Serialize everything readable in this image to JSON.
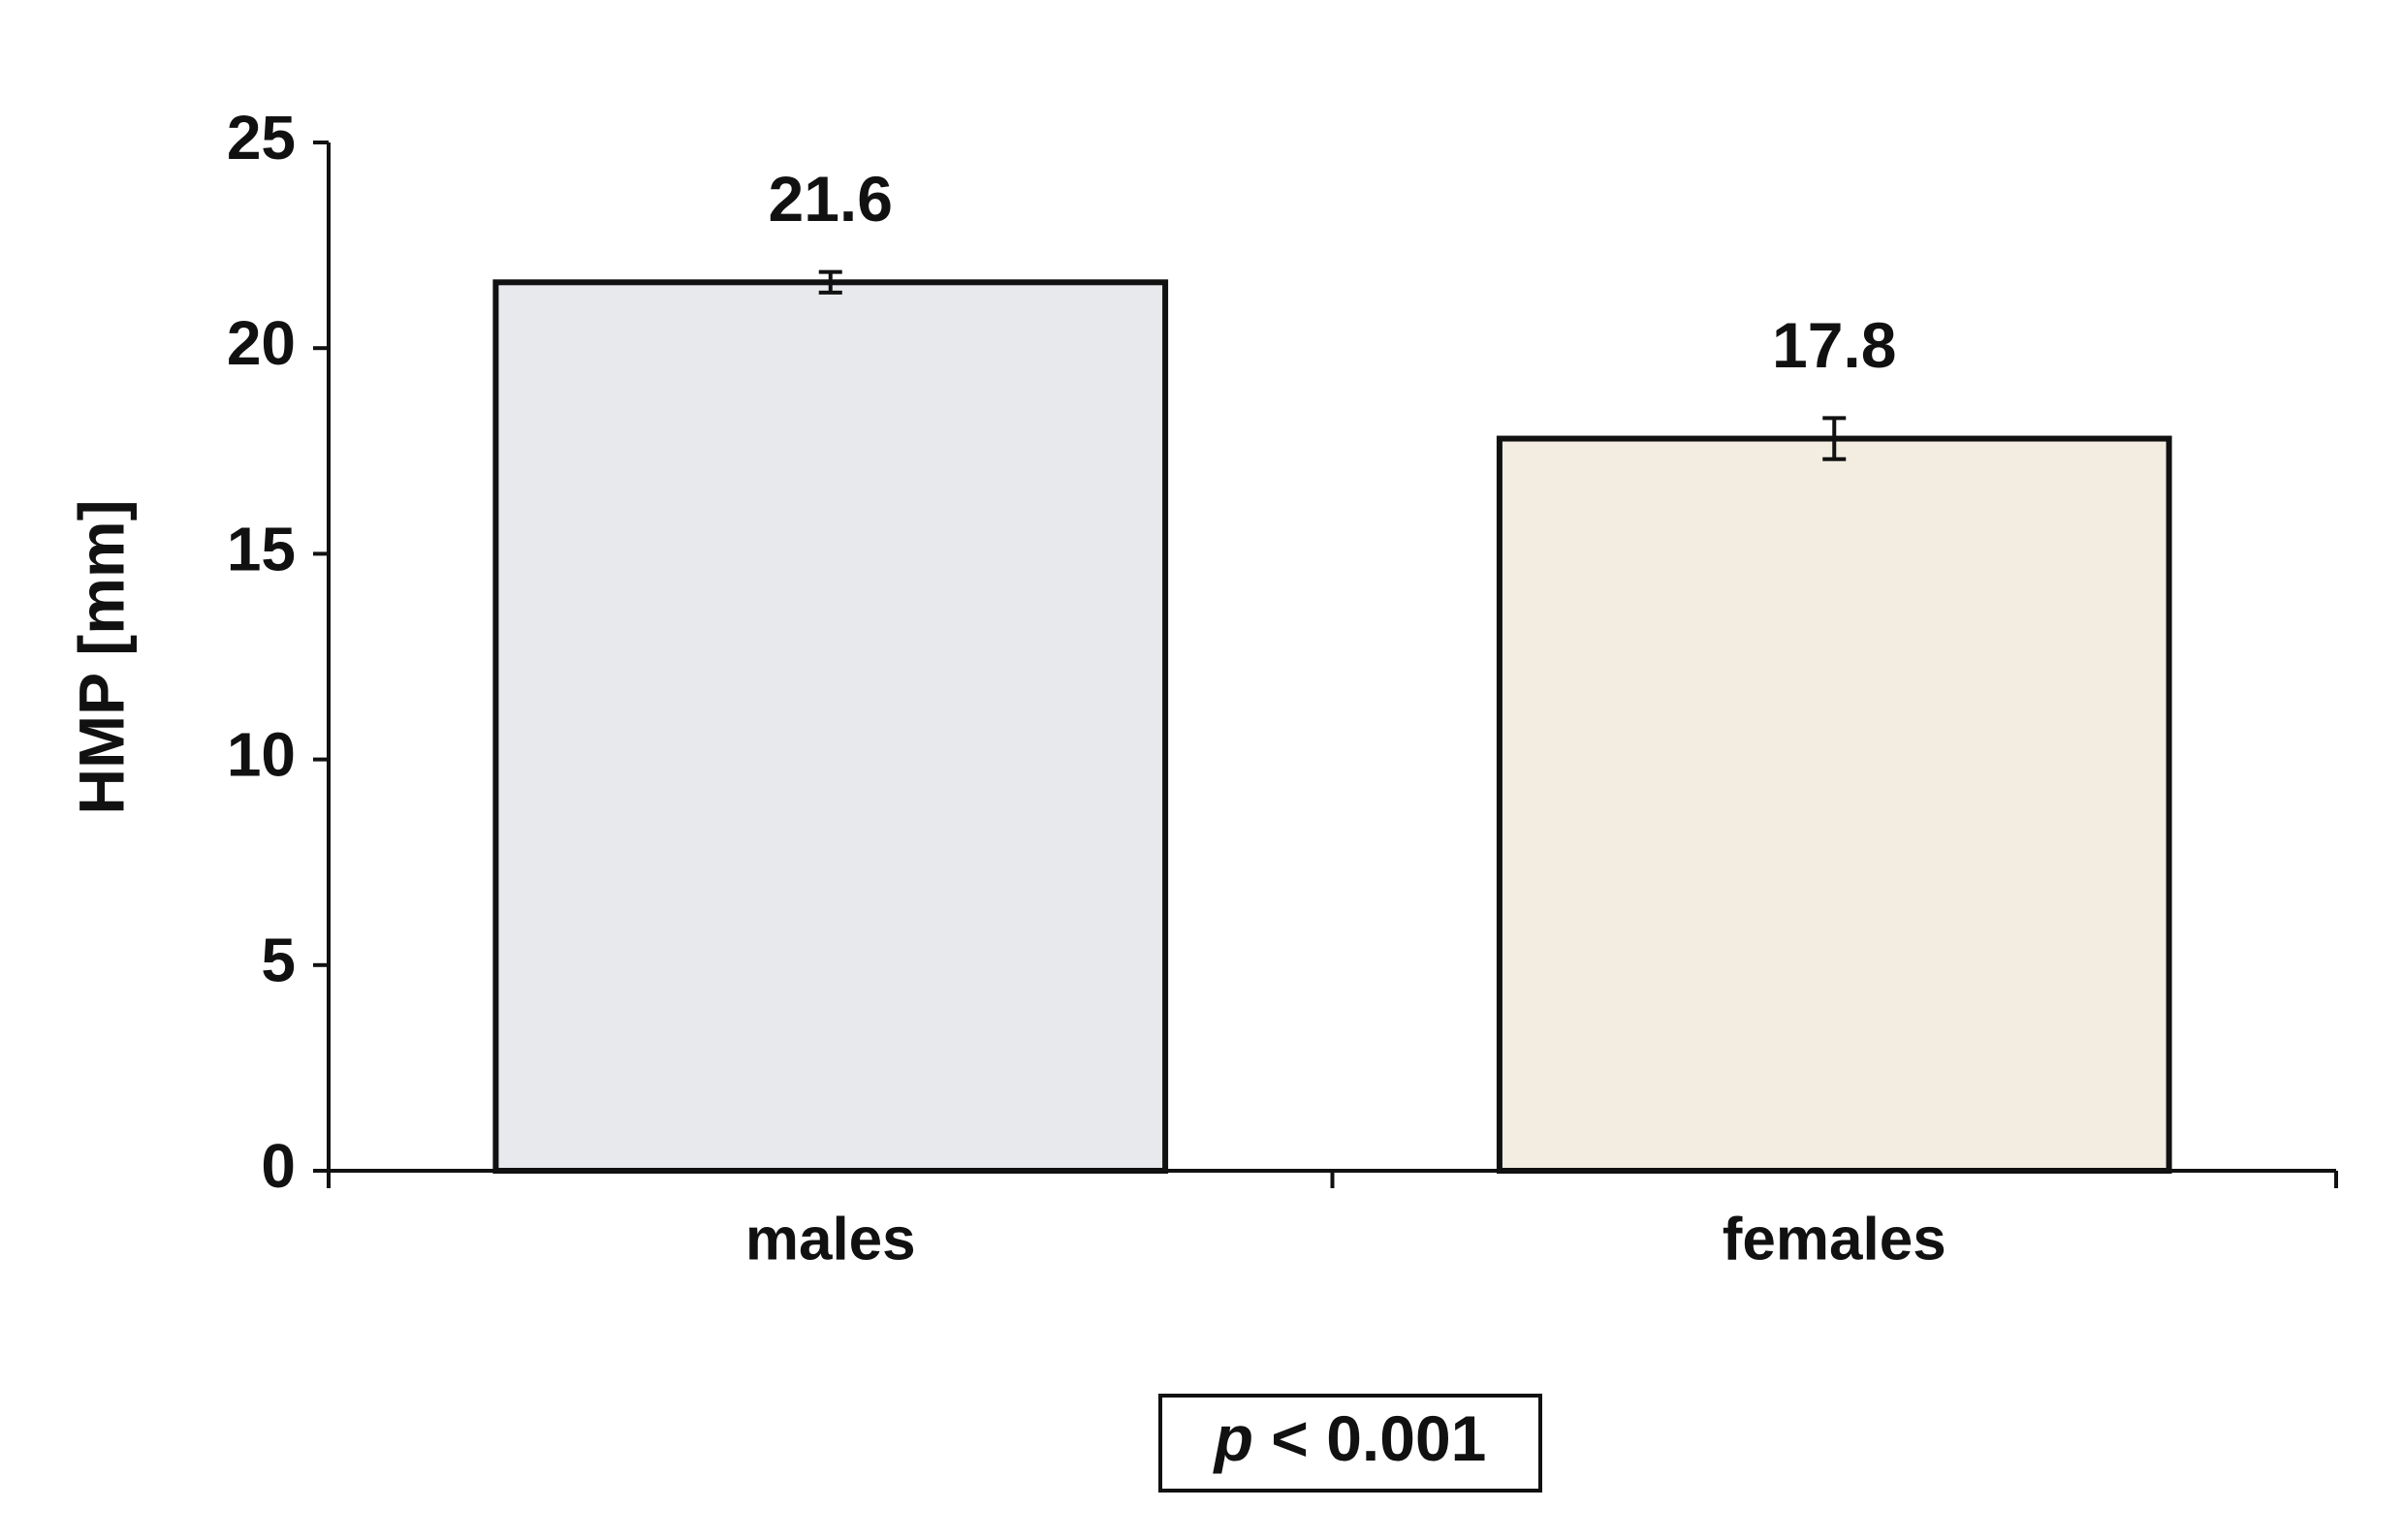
{
  "chart_data": {
    "type": "bar",
    "categories": [
      "males",
      "females"
    ],
    "values": [
      21.6,
      17.8
    ],
    "errors": [
      0.25,
      0.5
    ],
    "colors": [
      "#e8e9ec",
      "#f3ece1"
    ],
    "y_label": "HMP [mm]",
    "ylim": [
      0,
      25
    ],
    "yticks": [
      0,
      5,
      10,
      15,
      20,
      25
    ],
    "annotation": "p < 0.001",
    "grid": false
  }
}
